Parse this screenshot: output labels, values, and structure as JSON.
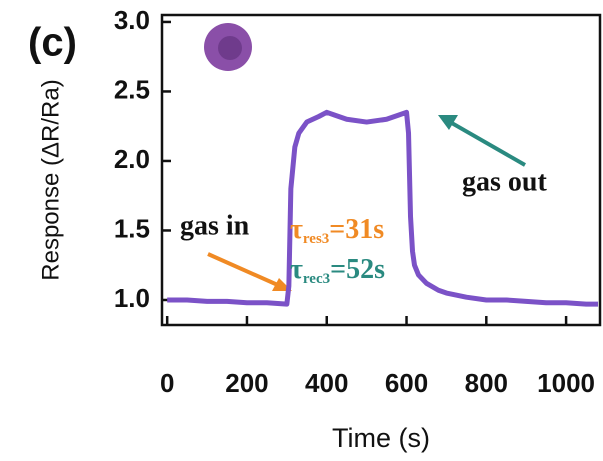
{
  "chart_data": {
    "type": "line",
    "panel_label": "(c)",
    "xlabel": "Time (s)",
    "ylabel": "Response (ΔR/Ra)",
    "x": [
      0,
      50,
      100,
      150,
      200,
      250,
      300,
      305,
      310,
      320,
      330,
      350,
      380,
      400,
      420,
      450,
      500,
      550,
      580,
      600,
      605,
      610,
      615,
      620,
      630,
      650,
      680,
      700,
      750,
      800,
      850,
      900,
      950,
      1000,
      1050,
      1080
    ],
    "series": [
      {
        "color": "#7b52c7",
        "values": [
          1.0,
          1.0,
          0.99,
          0.99,
          0.98,
          0.98,
          0.97,
          1.1,
          1.8,
          2.1,
          2.2,
          2.28,
          2.32,
          2.35,
          2.33,
          2.3,
          2.28,
          2.3,
          2.33,
          2.35,
          2.2,
          1.6,
          1.35,
          1.25,
          1.18,
          1.12,
          1.07,
          1.05,
          1.02,
          1.0,
          1.0,
          0.99,
          0.98,
          0.98,
          0.97,
          0.97
        ]
      }
    ],
    "xlim": [
      -13,
      1085
    ],
    "ylim": [
      0.82,
      3.05
    ],
    "xticks": [
      0,
      200,
      400,
      600,
      800,
      1000
    ],
    "yticks": [
      {
        "value": 1,
        "label": "1.0"
      },
      {
        "value": 1.5,
        "label": "1.5"
      },
      {
        "value": 2,
        "label": "2.0"
      },
      {
        "value": 2.5,
        "label": "2.5"
      },
      {
        "value": 3,
        "label": "3.0"
      }
    ],
    "annotations": [
      {
        "text": "gas in"
      },
      {
        "text": "gas out"
      }
    ],
    "time_constants": [
      {
        "symbol": "τ",
        "subscript": "res3",
        "text": "=31s",
        "color": "#f08a24"
      },
      {
        "symbol": "τ",
        "subscript": "rec3",
        "text": "=52s",
        "color": "#2a8a80"
      }
    ]
  }
}
